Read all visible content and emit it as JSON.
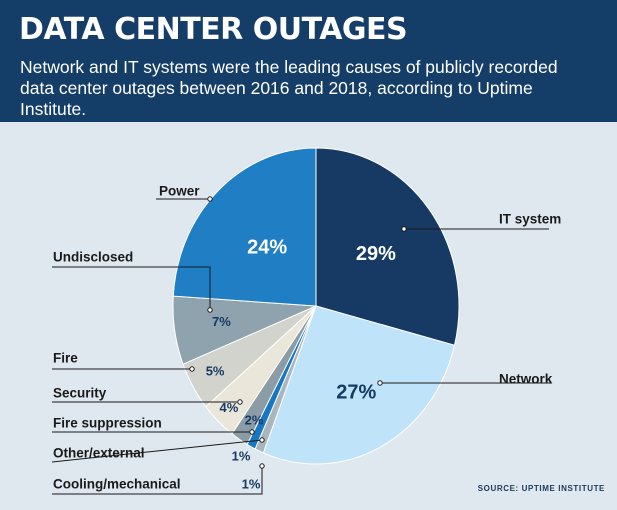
{
  "header": {
    "title": "DATA CENTER OUTAGES",
    "subtitle": "Network and IT systems were the leading causes of publicly recorded data center outages between 2016 and 2018, according to Uptime Institute."
  },
  "source": "SOURCE: UPTIME INSTITUTE",
  "chart_data": {
    "type": "pie",
    "title": "DATA CENTER OUTAGES",
    "slices": [
      {
        "label": "IT system",
        "value": 29,
        "value_label": "29%",
        "color": "#163a63"
      },
      {
        "label": "Network",
        "value": 27,
        "value_label": "27%",
        "color": "#bfe3f8"
      },
      {
        "label": "Cooling/mechanical",
        "value": 1,
        "value_label": "1%",
        "color": "#a9b6c0"
      },
      {
        "label": "Other/external",
        "value": 1,
        "value_label": "1%",
        "color": "#1877c2"
      },
      {
        "label": "Fire suppression",
        "value": 2,
        "value_label": "2%",
        "color": "#8c9ca7"
      },
      {
        "label": "Security",
        "value": 4,
        "value_label": "4%",
        "color": "#eae7da"
      },
      {
        "label": "Fire",
        "value": 5,
        "value_label": "5%",
        "color": "#d3d3cd"
      },
      {
        "label": "Undisclosed",
        "value": 7,
        "value_label": "7%",
        "color": "#8ea3ae"
      },
      {
        "label": "Power",
        "value": 24,
        "value_label": "24%",
        "color": "#1f7ec4"
      }
    ]
  }
}
